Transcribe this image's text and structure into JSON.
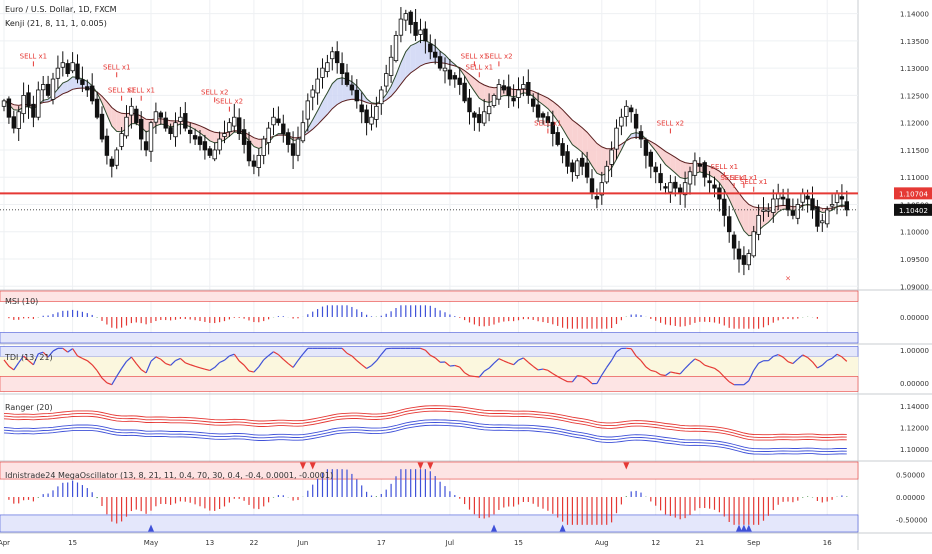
{
  "header": {
    "title": "Euro / U.S. Dollar, 1D, FXCM",
    "indicator": "Kenji (21, 8, 11, 1, 0.005)"
  },
  "colors": {
    "up_candle": "#ffffff",
    "down_candle": "#111111",
    "ma_fast": "#2e4a2e",
    "ma_slow": "#5a1f1f",
    "bear_fill": "#f8caca",
    "bull_fill": "#cfd6f5",
    "red": "#e53935",
    "blue": "#3f51d8",
    "green": "#3a8a3a"
  },
  "x_axis": {
    "labels": [
      {
        "label": "Apr",
        "day": 0
      },
      {
        "label": "15",
        "day": 14
      },
      {
        "label": "May",
        "day": 30
      },
      {
        "label": "13",
        "day": 42
      },
      {
        "label": "22",
        "day": 51
      },
      {
        "label": "Jun",
        "day": 61
      },
      {
        "label": "17",
        "day": 77
      },
      {
        "label": "Jul",
        "day": 91
      },
      {
        "label": "15",
        "day": 105
      },
      {
        "label": "Aug",
        "day": 122
      },
      {
        "label": "12",
        "day": 133
      },
      {
        "label": "21",
        "day": 142
      },
      {
        "label": "Sep",
        "day": 153
      },
      {
        "label": "16",
        "day": 168
      }
    ]
  },
  "chart_data": [
    {
      "type": "candlestick",
      "name": "price",
      "title": "Euro / U.S. Dollar, 1D, FXCM",
      "yticks": [
        1.14,
        1.135,
        1.13,
        1.125,
        1.12,
        1.115,
        1.11,
        1.105,
        1.1,
        1.095,
        1.09
      ],
      "ytick_labels": [
        "1.14000",
        "1.13500",
        "1.13000",
        "1.12500",
        "1.12000",
        "1.11500",
        "1.11000",
        "1.10500",
        "1.10000",
        "1.09500",
        "1.09000"
      ],
      "ylim": [
        1.0895,
        1.1425
      ],
      "horizontal_line": 1.10704,
      "horizontal_line_label": "1.10704",
      "last_price": 1.10402,
      "last_price_label": "1.10402",
      "closes": [
        1.124,
        1.121,
        1.119,
        1.122,
        1.125,
        1.123,
        1.121,
        1.126,
        1.127,
        1.125,
        1.128,
        1.13,
        1.131,
        1.129,
        1.131,
        1.128,
        1.127,
        1.126,
        1.124,
        1.121,
        1.117,
        1.114,
        1.112,
        1.115,
        1.118,
        1.121,
        1.123,
        1.12,
        1.117,
        1.115,
        1.12,
        1.122,
        1.121,
        1.119,
        1.118,
        1.12,
        1.121,
        1.119,
        1.118,
        1.117,
        1.116,
        1.115,
        1.114,
        1.115,
        1.117,
        1.118,
        1.12,
        1.121,
        1.118,
        1.116,
        1.113,
        1.112,
        1.114,
        1.117,
        1.119,
        1.121,
        1.12,
        1.118,
        1.116,
        1.114,
        1.117,
        1.12,
        1.124,
        1.126,
        1.128,
        1.13,
        1.131,
        1.133,
        1.131,
        1.129,
        1.127,
        1.126,
        1.124,
        1.122,
        1.12,
        1.121,
        1.123,
        1.126,
        1.129,
        1.132,
        1.136,
        1.139,
        1.14,
        1.138,
        1.136,
        1.137,
        1.135,
        1.133,
        1.132,
        1.13,
        1.13,
        1.128,
        1.128,
        1.127,
        1.124,
        1.122,
        1.121,
        1.12,
        1.122,
        1.123,
        1.125,
        1.127,
        1.126,
        1.125,
        1.124,
        1.126,
        1.127,
        1.125,
        1.123,
        1.121,
        1.121,
        1.12,
        1.118,
        1.116,
        1.114,
        1.112,
        1.111,
        1.113,
        1.112,
        1.11,
        1.107,
        1.106,
        1.109,
        1.112,
        1.115,
        1.119,
        1.121,
        1.123,
        1.122,
        1.119,
        1.117,
        1.114,
        1.112,
        1.111,
        1.109,
        1.108,
        1.109,
        1.108,
        1.107,
        1.109,
        1.111,
        1.113,
        1.112,
        1.11,
        1.109,
        1.108,
        1.106,
        1.103,
        1.1,
        1.097,
        1.095,
        1.094,
        1.096,
        1.1,
        1.103,
        1.104,
        1.104,
        1.106,
        1.107,
        1.106,
        1.104,
        1.103,
        1.105,
        1.107,
        1.106,
        1.104,
        1.101,
        1.102,
        1.104,
        1.105,
        1.107,
        1.106,
        1.104
      ],
      "signals": [
        {
          "label": "SELL x1",
          "day": 6,
          "price": 1.1318
        },
        {
          "label": "SELL x1",
          "day": 23,
          "price": 1.1298
        },
        {
          "label": "SELL x1",
          "day": 24,
          "price": 1.1255
        },
        {
          "label": "SELL x1",
          "day": 28,
          "price": 1.1255
        },
        {
          "label": "SELL x2",
          "day": 43,
          "price": 1.1252
        },
        {
          "label": "SELL x2",
          "day": 46,
          "price": 1.1235
        },
        {
          "label": "SELL x1",
          "day": 96,
          "price": 1.1318
        },
        {
          "label": "SELL x1",
          "day": 97,
          "price": 1.1298
        },
        {
          "label": "SELL x2",
          "day": 101,
          "price": 1.1318
        },
        {
          "label": "SELL x1",
          "day": 111,
          "price": 1.1195
        },
        {
          "label": "SELL x2",
          "day": 136,
          "price": 1.1195
        },
        {
          "label": "SELL x1",
          "day": 147,
          "price": 1.1115
        },
        {
          "label": "SELL x1",
          "day": 149,
          "price": 1.1095
        },
        {
          "label": "SELL x1",
          "day": 151,
          "price": 1.1095
        },
        {
          "label": "SELL x1",
          "day": 153,
          "price": 1.1088
        }
      ],
      "x_marker": {
        "label": "×",
        "day": 160,
        "price": 1.0925
      }
    },
    {
      "type": "histogram",
      "name": "MSI",
      "title": "MSI (10)",
      "yticks": [
        0
      ],
      "ytick_labels": [
        "0.00000"
      ],
      "ylim": [
        -1,
        1
      ],
      "bands": {
        "upper": [
          0.6,
          1
        ],
        "lower": [
          -1,
          -0.6
        ]
      }
    },
    {
      "type": "line",
      "name": "TDI",
      "title": "TDI (13, 21)",
      "yticks": [
        1,
        0
      ],
      "ytick_labels": [
        "1.00000",
        "0.00000"
      ],
      "ylim": [
        -0.3,
        1.15
      ]
    },
    {
      "type": "bands",
      "name": "Ranger",
      "title": "Ranger (20)",
      "yticks": [
        1.14,
        1.12,
        1.1
      ],
      "ytick_labels": [
        "1.14000",
        "1.12000",
        "1.10000"
      ],
      "ylim": [
        1.09,
        1.15
      ]
    },
    {
      "type": "histogram",
      "name": "MegaOscillator",
      "title": "Idnistrade24 MegaOscillator (13, 8, 21, 11, 0.4, 70, 30, 0.4, -0.4, 0.0001, -0.0001)",
      "yticks": [
        0.5,
        0,
        -0.5
      ],
      "ytick_labels": [
        "0.50000",
        "0.00000",
        "-0.50000"
      ],
      "ylim": [
        -0.78,
        0.78
      ],
      "bands": {
        "upper": [
          0.4,
          0.78
        ],
        "lower": [
          -0.78,
          -0.4
        ]
      },
      "up_arrows_days": [
        30,
        100,
        114,
        150,
        151,
        152
      ],
      "down_arrows_days": [
        61,
        63,
        85,
        87,
        127
      ]
    }
  ]
}
